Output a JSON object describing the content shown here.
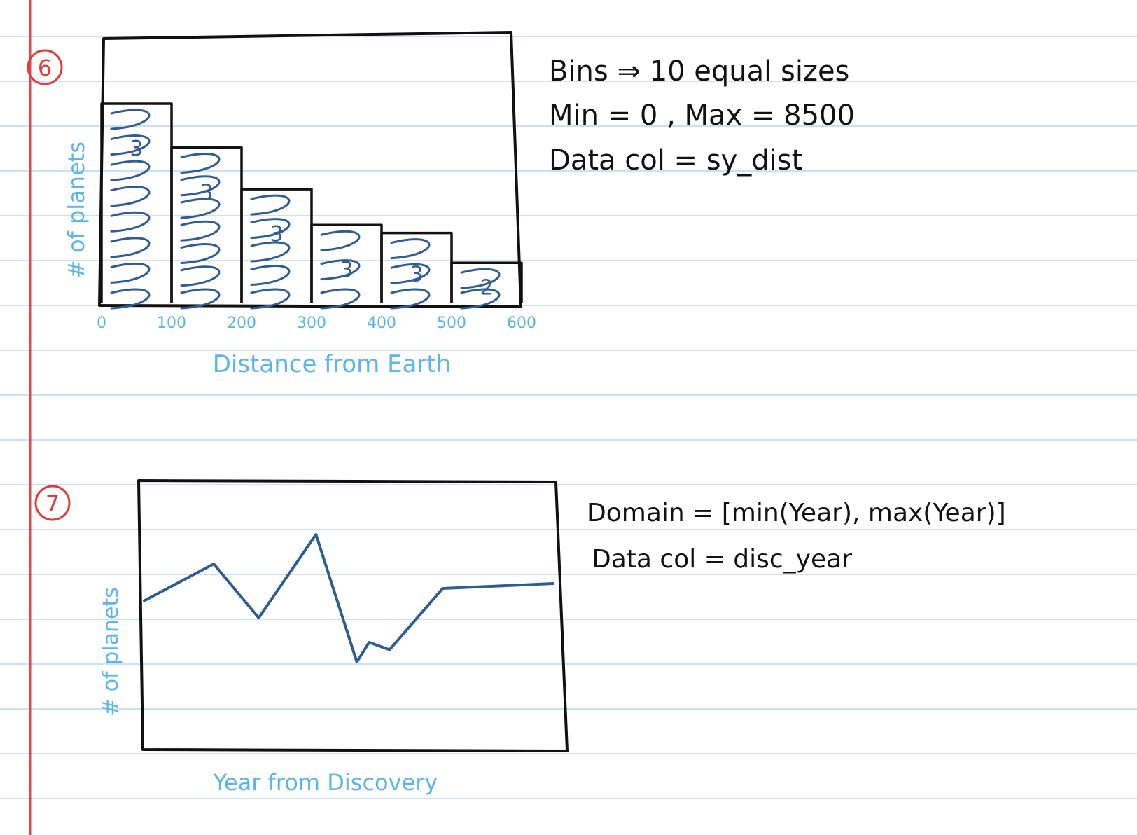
{
  "colors": {
    "paper": "#ffffff",
    "ruled_line": "#c9e2f3",
    "margin_line": "#e04848",
    "pen_black": "#111111",
    "pen_blue": "#2e5c93",
    "pen_light_blue": "#5bb4ea",
    "pen_red": "#e23b3b"
  },
  "sketch_6": {
    "number": "6",
    "ylabel": "# of planets",
    "xlabel": "Distance from Earth",
    "ticks": [
      "0",
      "100",
      "200",
      "300",
      "400",
      "500",
      "600"
    ],
    "bar_labels": [
      "3",
      "3",
      "3",
      "3",
      "3",
      "2"
    ],
    "notes": [
      "Bins ⇒ 10 equal sizes",
      "Min = 0 , Max = 8500",
      "Data col = sy_dist"
    ]
  },
  "sketch_7": {
    "number": "7",
    "ylabel": "# of planets",
    "xlabel": "Year from Discovery",
    "notes": [
      "Domain = [min(Year), max(Year)]",
      "Data col = disc_year"
    ]
  },
  "chart_data": [
    {
      "type": "bar",
      "xlabel": "Distance from Earth",
      "ylabel": "# of planets",
      "x_ticks": [
        0,
        100,
        200,
        300,
        400,
        500,
        600
      ],
      "bins": [
        [
          0,
          100
        ],
        [
          100,
          200
        ],
        [
          200,
          300
        ],
        [
          300,
          400
        ],
        [
          400,
          500
        ],
        [
          500,
          600
        ]
      ],
      "values": [
        3,
        3,
        3,
        3,
        3,
        2
      ],
      "relative_heights": [
        1.0,
        0.78,
        0.57,
        0.39,
        0.35,
        0.2
      ],
      "xlim": [
        0,
        600
      ]
    },
    {
      "type": "line",
      "xlabel": "Year from Discovery",
      "ylabel": "# of planets",
      "x": [
        0,
        0.17,
        0.28,
        0.42,
        0.52,
        0.55,
        0.6,
        0.73,
        1.0
      ],
      "y": [
        0.55,
        0.7,
        0.48,
        0.82,
        0.3,
        0.38,
        0.35,
        0.6,
        0.62
      ],
      "grid": false
    }
  ]
}
